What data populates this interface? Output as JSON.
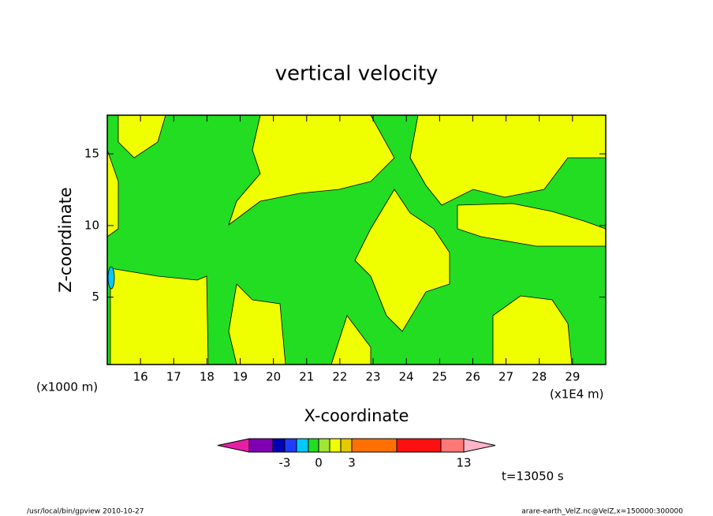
{
  "chart_data": {
    "type": "contour",
    "title": "vertical velocity",
    "x_label": "X-coordinate",
    "y_label": "Z-coordinate",
    "x_unit_label": "(x1E4 m)",
    "y_unit_label": "(x1000 m)",
    "xlim": [
      15,
      30
    ],
    "xticks": [
      16,
      17,
      18,
      19,
      20,
      21,
      22,
      23,
      24,
      25,
      26,
      27,
      28,
      29
    ],
    "ylim": [
      0.3,
      17.7
    ],
    "yticks": [
      5,
      10,
      15
    ],
    "colorbar": {
      "colors": [
        "#e61ea6",
        "#8000b4",
        "#0000b4",
        "#1e3cff",
        "#00c8ff",
        "#22dd22",
        "#a0e632",
        "#f0ff00",
        "#e6c800",
        "#ff7000",
        "#ff1010",
        "#ff7878",
        "#ffb4c8"
      ],
      "levels": [
        -5,
        -4,
        -3,
        -2,
        -1,
        0,
        1,
        2,
        3,
        5,
        10,
        13
      ],
      "ticks": [
        -3,
        0,
        3,
        13
      ]
    },
    "annotation": "t=13050 s",
    "footer_left": "/usr/local/bin/gpview   2010-10-27",
    "footer_right": "arare-earth_VelZ.nc@VelZ,x=150000:300000"
  }
}
